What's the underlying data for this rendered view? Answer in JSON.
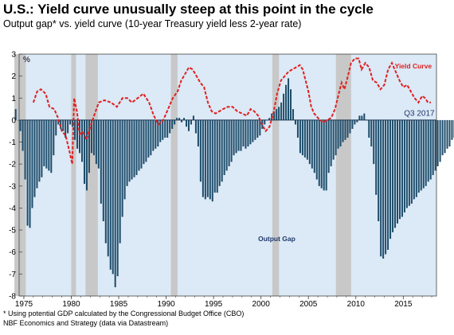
{
  "title": "U.S.: Yield curve unusually steep at this point in the cycle",
  "subtitle": "Output gap* vs. yield curve (10-year Treasury yield less 2-year rate)",
  "footnotes": [
    "* Using potential GDP calculated by the Congressional Budget Office (CBO)",
    "NBF Economics and Strategy (data via Datastream)"
  ],
  "chart_data": {
    "type": "bar",
    "y_unit_label": "%",
    "xlim": [
      1974.5,
      2018.5
    ],
    "ylim": [
      -8,
      3
    ],
    "yticks": [
      3,
      2,
      1,
      0,
      -1,
      -2,
      -3,
      -4,
      -5,
      -6,
      -7,
      -8
    ],
    "xticks": [
      1975,
      1980,
      1985,
      1990,
      1995,
      2000,
      2005,
      2010,
      2015
    ],
    "grid": false,
    "background_color": "#dce9f6",
    "recession_color": "#c8c8c8",
    "recession_periods": [
      [
        1974.0,
        1975.2
      ],
      [
        1980.0,
        1980.5
      ],
      [
        1981.5,
        1982.8
      ],
      [
        1990.5,
        1991.2
      ],
      [
        2001.2,
        2001.9
      ],
      [
        2007.9,
        2009.5
      ]
    ],
    "annotation": "Q3 2017",
    "series": [
      {
        "name": "Output Gap",
        "type": "bar",
        "color": "#1e4d6b",
        "label_color": "#1f3a6b",
        "frequency": "quarterly",
        "start": 1974.0,
        "values": [
          0.5,
          0.0,
          -0.5,
          -1.4,
          -2.7,
          -4.8,
          -4.9,
          -4.0,
          -3.5,
          -3.1,
          -2.8,
          -2.6,
          -2.1,
          -2.2,
          -2.3,
          -2.4,
          -1.6,
          -0.7,
          -0.2,
          -0.4,
          -0.5,
          -0.8,
          -0.6,
          -0.2,
          -0.3,
          -0.9,
          -1.3,
          -1.5,
          -1.9,
          -2.9,
          -3.2,
          -2.4,
          -1.5,
          -1.6,
          -2.0,
          -2.2,
          -3.8,
          -4.6,
          -5.6,
          -6.2,
          -6.8,
          -7.0,
          -7.6,
          -7.1,
          -5.6,
          -4.4,
          -3.6,
          -3.0,
          -2.8,
          -2.7,
          -2.6,
          -2.5,
          -2.3,
          -2.2,
          -2.0,
          -1.9,
          -1.7,
          -1.6,
          -1.4,
          -1.3,
          -1.2,
          -1.0,
          -0.9,
          -0.8,
          -0.8,
          -0.6,
          -0.4,
          -0.2,
          0.1,
          0.1,
          -0.1,
          0.1,
          -0.3,
          -0.5,
          -0.2,
          0.2,
          -0.6,
          -1.2,
          -2.8,
          -3.5,
          -3.6,
          -3.5,
          -3.6,
          -3.7,
          -3.3,
          -3.3,
          -3.0,
          -2.8,
          -2.5,
          -2.3,
          -2.1,
          -1.9,
          -1.6,
          -1.5,
          -1.4,
          -1.4,
          -1.2,
          -1.3,
          -1.2,
          -1.1,
          -1.0,
          -0.9,
          -0.8,
          -0.7,
          -0.4,
          -0.2,
          0.0,
          0.1,
          0.3,
          0.4,
          0.5,
          0.6,
          0.8,
          1.2,
          1.6,
          1.9,
          1.4,
          0.5,
          -0.2,
          -0.8,
          -1.5,
          -1.6,
          -1.7,
          -1.8,
          -2.0,
          -2.2,
          -2.4,
          -2.7,
          -3.0,
          -3.1,
          -3.2,
          -3.2,
          -2.4,
          -2.1,
          -1.8,
          -1.6,
          -1.3,
          -1.2,
          -1.0,
          -0.9,
          -0.8,
          -0.6,
          -0.4,
          -0.2,
          -0.1,
          0.2,
          0.2,
          0.3,
          0.0,
          -0.8,
          -1.2,
          -2.0,
          -3.4,
          -4.6,
          -6.2,
          -6.3,
          -6.1,
          -5.9,
          -5.4,
          -5.1,
          -4.9,
          -4.7,
          -4.5,
          -4.4,
          -4.2,
          -4.0,
          -3.9,
          -3.8,
          -3.6,
          -3.5,
          -3.3,
          -3.2,
          -3.1,
          -3.0,
          -2.8,
          -2.7,
          -2.5,
          -2.3,
          -2.1,
          -1.9,
          -1.6,
          -1.5,
          -1.3,
          -1.2,
          -0.9,
          -0.8,
          -0.7,
          -0.6,
          -0.4,
          -0.3,
          0.0
        ]
      },
      {
        "name": "Yield Curve",
        "type": "line",
        "style": "dashed",
        "color": "#e02020",
        "points": [
          [
            1976.0,
            0.8
          ],
          [
            1976.4,
            1.3
          ],
          [
            1976.8,
            1.4
          ],
          [
            1977.3,
            1.2
          ],
          [
            1977.7,
            0.6
          ],
          [
            1978.2,
            0.5
          ],
          [
            1978.6,
            0.1
          ],
          [
            1979.0,
            -0.5
          ],
          [
            1979.4,
            -0.7
          ],
          [
            1979.8,
            -1.4
          ],
          [
            1980.1,
            -2.0
          ],
          [
            1980.3,
            1.0
          ],
          [
            1980.6,
            0.4
          ],
          [
            1980.9,
            -0.7
          ],
          [
            1981.2,
            -0.5
          ],
          [
            1981.6,
            -0.9
          ],
          [
            1982.0,
            -0.3
          ],
          [
            1982.4,
            0.2
          ],
          [
            1982.9,
            0.8
          ],
          [
            1983.5,
            0.9
          ],
          [
            1984.2,
            0.8
          ],
          [
            1984.8,
            0.6
          ],
          [
            1985.4,
            1.0
          ],
          [
            1985.9,
            1.0
          ],
          [
            1986.4,
            0.8
          ],
          [
            1987.0,
            1.0
          ],
          [
            1987.6,
            1.2
          ],
          [
            1988.2,
            0.8
          ],
          [
            1988.7,
            0.2
          ],
          [
            1989.2,
            -0.2
          ],
          [
            1989.7,
            0.0
          ],
          [
            1990.2,
            0.5
          ],
          [
            1990.7,
            1.0
          ],
          [
            1991.2,
            1.3
          ],
          [
            1991.6,
            1.8
          ],
          [
            1992.0,
            2.1
          ],
          [
            1992.4,
            2.4
          ],
          [
            1992.8,
            2.3
          ],
          [
            1993.2,
            2.0
          ],
          [
            1993.6,
            1.7
          ],
          [
            1994.0,
            1.5
          ],
          [
            1994.4,
            0.8
          ],
          [
            1994.8,
            0.4
          ],
          [
            1995.2,
            0.3
          ],
          [
            1995.6,
            0.4
          ],
          [
            1996.0,
            0.5
          ],
          [
            1996.5,
            0.6
          ],
          [
            1997.0,
            0.6
          ],
          [
            1997.5,
            0.4
          ],
          [
            1998.0,
            0.3
          ],
          [
            1998.5,
            0.2
          ],
          [
            1998.9,
            0.5
          ],
          [
            1999.3,
            0.4
          ],
          [
            1999.7,
            0.2
          ],
          [
            2000.1,
            -0.2
          ],
          [
            2000.5,
            -0.5
          ],
          [
            2000.9,
            -0.3
          ],
          [
            2001.3,
            0.3
          ],
          [
            2001.7,
            1.2
          ],
          [
            2002.1,
            1.8
          ],
          [
            2002.5,
            2.0
          ],
          [
            2002.9,
            2.2
          ],
          [
            2003.3,
            2.3
          ],
          [
            2003.7,
            2.4
          ],
          [
            2004.1,
            2.5
          ],
          [
            2004.4,
            2.3
          ],
          [
            2004.7,
            1.8
          ],
          [
            2005.0,
            1.3
          ],
          [
            2005.3,
            0.6
          ],
          [
            2005.6,
            0.3
          ],
          [
            2006.0,
            0.1
          ],
          [
            2006.5,
            -0.1
          ],
          [
            2007.0,
            0.0
          ],
          [
            2007.4,
            0.1
          ],
          [
            2007.8,
            0.5
          ],
          [
            2008.2,
            1.2
          ],
          [
            2008.5,
            1.7
          ],
          [
            2008.8,
            1.4
          ],
          [
            2009.1,
            1.9
          ],
          [
            2009.5,
            2.6
          ],
          [
            2009.9,
            2.8
          ],
          [
            2010.3,
            2.8
          ],
          [
            2010.6,
            2.3
          ],
          [
            2011.0,
            2.6
          ],
          [
            2011.4,
            2.4
          ],
          [
            2011.8,
            1.8
          ],
          [
            2012.2,
            1.7
          ],
          [
            2012.6,
            1.4
          ],
          [
            2013.0,
            1.6
          ],
          [
            2013.4,
            2.3
          ],
          [
            2013.8,
            2.6
          ],
          [
            2014.2,
            2.2
          ],
          [
            2014.6,
            1.8
          ],
          [
            2015.0,
            1.5
          ],
          [
            2015.4,
            1.6
          ],
          [
            2015.8,
            1.3
          ],
          [
            2016.2,
            1.0
          ],
          [
            2016.6,
            0.8
          ],
          [
            2017.0,
            1.1
          ],
          [
            2017.3,
            1.0
          ],
          [
            2017.6,
            0.8
          ],
          [
            2017.9,
            0.8
          ]
        ]
      }
    ]
  }
}
